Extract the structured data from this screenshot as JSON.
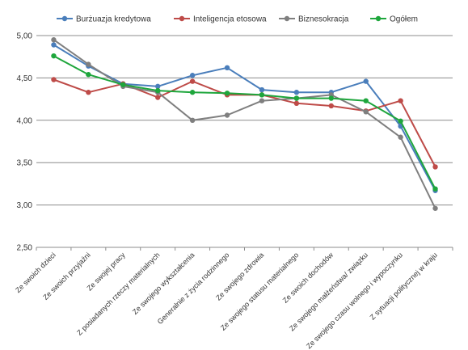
{
  "chart_data": {
    "type": "line",
    "title": "",
    "xlabel": "",
    "ylabel": "",
    "ylim": [
      2.5,
      5.0
    ],
    "yticks": [
      "5,00",
      "4,50",
      "4,00",
      "3,50",
      "3,00",
      "2,50"
    ],
    "ytick_values": [
      5.0,
      4.5,
      4.0,
      3.5,
      3.0,
      2.5
    ],
    "grid": true,
    "legend_position": "top",
    "categories": [
      "Ze swoich dzieci",
      "Ze swoich przyjaźni",
      "Ze swojej pracy",
      "Z posiadanych rzeczy materialnych",
      "Ze swojego wykształcenia",
      "Generalnie z życia rodzinnego",
      "Ze swojego zdrowia",
      "Ze swojego statusu materialnego",
      "Ze swoich dochodów",
      "Ze swojego małżeństwa/ związku",
      "Ze swojego czasu wolnego i wypoczynku",
      "Z sytuacji politycznej w kraju"
    ],
    "series": [
      {
        "name": "Burżuazja kredytowa",
        "color": "#4a7ebb",
        "values": [
          4.89,
          4.64,
          4.43,
          4.4,
          4.53,
          4.62,
          4.36,
          4.33,
          4.33,
          4.46,
          3.93,
          3.17
        ]
      },
      {
        "name": "Inteligencja etosowa",
        "color": "#be4b48",
        "values": [
          4.48,
          4.33,
          4.43,
          4.27,
          4.46,
          4.3,
          4.3,
          4.2,
          4.17,
          4.11,
          4.23,
          3.45
        ]
      },
      {
        "name": "Biznesokracja",
        "color": "#7f7f7f",
        "values": [
          4.95,
          4.66,
          4.4,
          4.33,
          4.0,
          4.06,
          4.23,
          4.26,
          4.3,
          4.1,
          3.8,
          2.96
        ]
      },
      {
        "name": "Ogółem",
        "color": "#1ea63c",
        "values": [
          4.76,
          4.54,
          4.42,
          4.35,
          4.33,
          4.32,
          4.3,
          4.26,
          4.26,
          4.23,
          3.99,
          3.19
        ]
      }
    ]
  }
}
